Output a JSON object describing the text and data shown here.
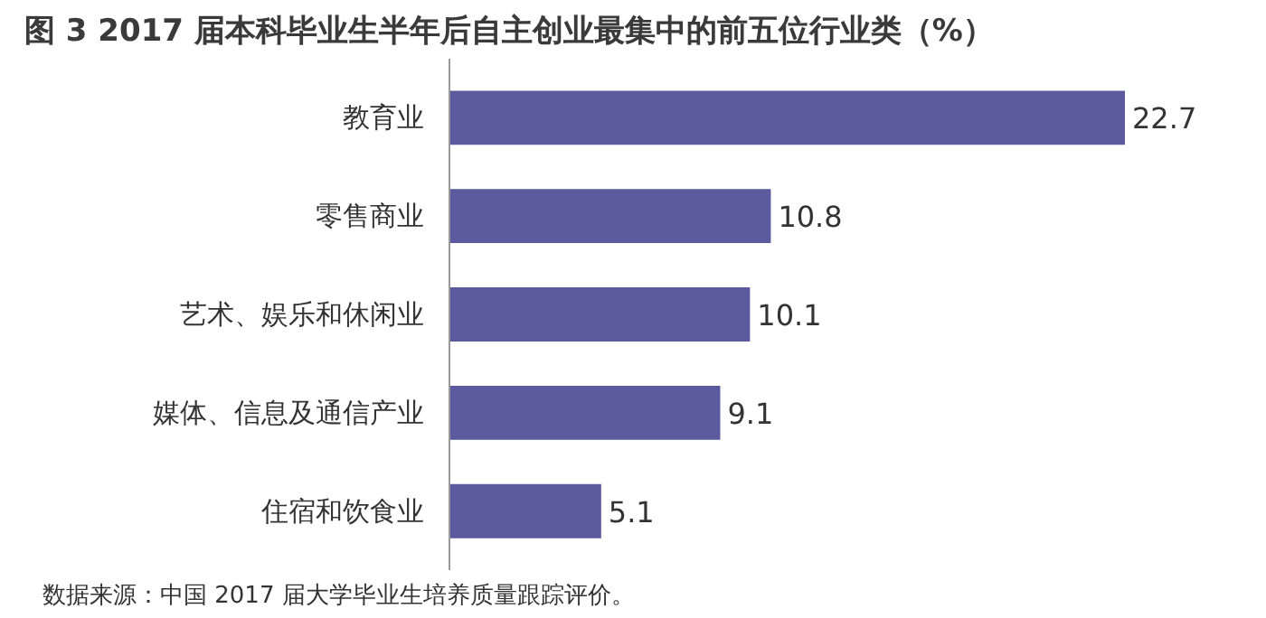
{
  "chart_data": {
    "type": "bar",
    "orientation": "horizontal",
    "title": "图 3  2017 届本科毕业生半年后自主创业最集中的前五位行业类（%）",
    "categories": [
      "教育业",
      "零售商业",
      "艺术、娱乐和休闲业",
      "媒体、信息及通信产业",
      "住宿和饮食业"
    ],
    "values": [
      22.7,
      10.8,
      10.1,
      9.1,
      5.1
    ],
    "color": "#5b5a9e",
    "data_labels": true,
    "grid": false,
    "annotations": [
      "数据来源：中国 2017 届大学毕业生培养质量跟踪评价。"
    ]
  }
}
